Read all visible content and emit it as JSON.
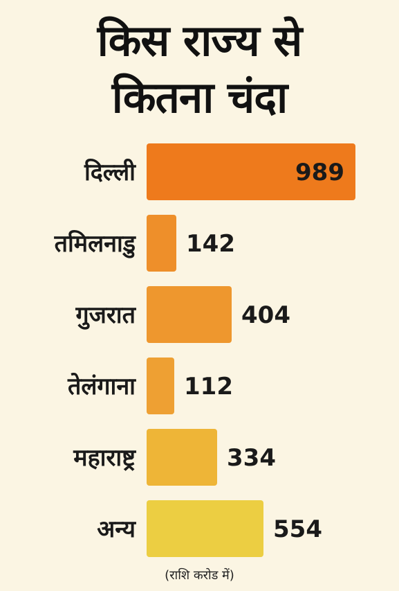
{
  "title": {
    "line1": "किस राज्य से",
    "line2": "कितना चंदा"
  },
  "note": "(राशि करोड में)",
  "chart_data": {
    "type": "bar",
    "orientation": "horizontal",
    "categories": [
      "दिल्ली",
      "तमिलनाडु",
      "गुजरात",
      "तेलंगाना",
      "महाराष्ट्र",
      "अन्य"
    ],
    "values": [
      989,
      142,
      404,
      112,
      334,
      554
    ],
    "value_unit": "(राशि करोड में)",
    "bar_colors": [
      "#ee7a1c",
      "#ee8f2a",
      "#ee972e",
      "#eea033",
      "#eeb537",
      "#ecce42"
    ],
    "grid": false,
    "legend": "none",
    "data_labels": "outside-end, inside-end for largest bar"
  }
}
